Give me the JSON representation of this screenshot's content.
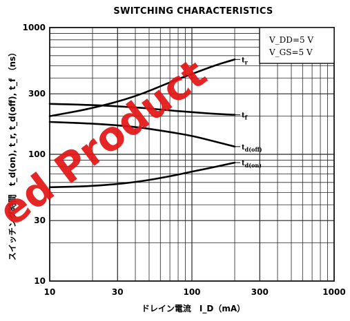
{
  "chart_data": {
    "type": "line",
    "title": "SWITCHING CHARACTERISTICS",
    "xlabel": "ドレイン電流　I_D（mA）",
    "ylabel": "スイッチング時間　t_d(on), t_r, t_d(off), t_f （ns）",
    "x_scale": "log",
    "y_scale": "log",
    "xlim": [
      10,
      1000
    ],
    "ylim": [
      10,
      1000
    ],
    "x_ticks": [
      "10",
      "30",
      "100",
      "300",
      "1000"
    ],
    "y_ticks": [
      "10",
      "30",
      "100",
      "300",
      "1000"
    ],
    "grid": true,
    "conditions": [
      "V_DD=5 V",
      "V_GS=5 V"
    ],
    "series": [
      {
        "name": "t_r",
        "x": [
          10,
          20,
          40,
          70,
          100,
          150,
          200
        ],
        "y": [
          200,
          230,
          285,
          370,
          430,
          510,
          560
        ]
      },
      {
        "name": "t_f",
        "x": [
          10,
          20,
          40,
          70,
          100,
          150,
          200
        ],
        "y": [
          250,
          245,
          235,
          222,
          215,
          208,
          205
        ]
      },
      {
        "name": "t_d(off)",
        "x": [
          10,
          20,
          40,
          70,
          100,
          150,
          200
        ],
        "y": [
          180,
          175,
          165,
          150,
          140,
          125,
          115
        ]
      },
      {
        "name": "t_d(on)",
        "x": [
          10,
          20,
          40,
          70,
          100,
          150,
          200
        ],
        "y": [
          55,
          56,
          60,
          67,
          73,
          80,
          86
        ]
      }
    ]
  },
  "watermark": {
    "text": "ed Product",
    "color": "#e21616"
  }
}
